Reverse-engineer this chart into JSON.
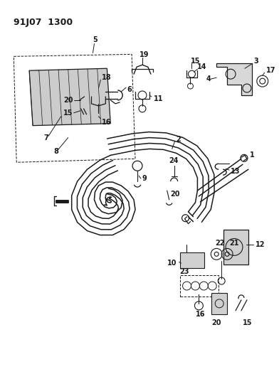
{
  "title": "91J07 1300",
  "bg_color": "#ffffff",
  "line_color": "#1a1a1a",
  "font_size_title": 9,
  "font_size_label": 7,
  "tube_offsets": [
    0,
    0.01,
    0.02,
    0.03
  ],
  "tube_lw": 1.1
}
